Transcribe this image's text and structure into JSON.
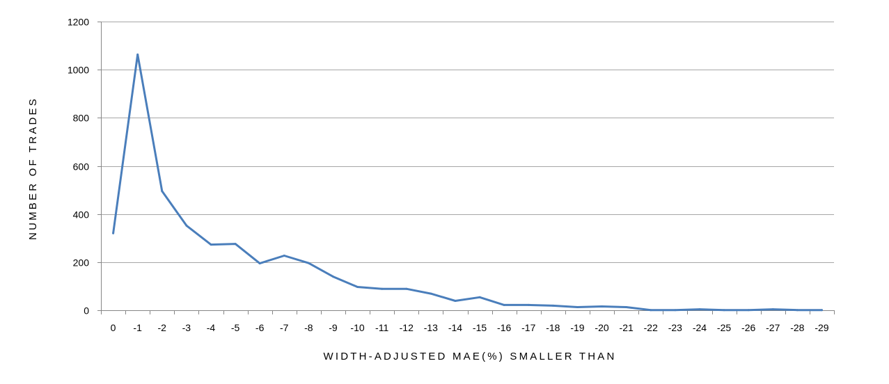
{
  "chart_data": {
    "type": "line",
    "title": "",
    "xlabel": "WIDTH-ADJUSTED MAE(%) SMALLER THAN",
    "ylabel": "NUMBER OF TRADES",
    "categories": [
      "0",
      "-1",
      "-2",
      "-3",
      "-4",
      "-5",
      "-6",
      "-7",
      "-8",
      "-9",
      "-10",
      "-11",
      "-12",
      "-13",
      "-14",
      "-15",
      "-16",
      "-17",
      "-18",
      "-19",
      "-20",
      "-21",
      "-22",
      "-23",
      "-24",
      "-25",
      "-26",
      "-27",
      "-28",
      "-29"
    ],
    "series": [
      {
        "values": [
          320,
          1063,
          495,
          352,
          273,
          276,
          195,
          227,
          196,
          140,
          97,
          89,
          89,
          69,
          39,
          54,
          22,
          22,
          19,
          13,
          16,
          13,
          1,
          1,
          4,
          1,
          1,
          4,
          1,
          1
        ]
      }
    ],
    "ylim": [
      0,
      1200
    ],
    "yticks": [
      0,
      200,
      400,
      600,
      800,
      1000,
      1200
    ],
    "grid": true,
    "legend": "none",
    "colors": {
      "series": "#4a7ebb",
      "grid": "#a6a6a6",
      "axis": "#868686"
    }
  }
}
